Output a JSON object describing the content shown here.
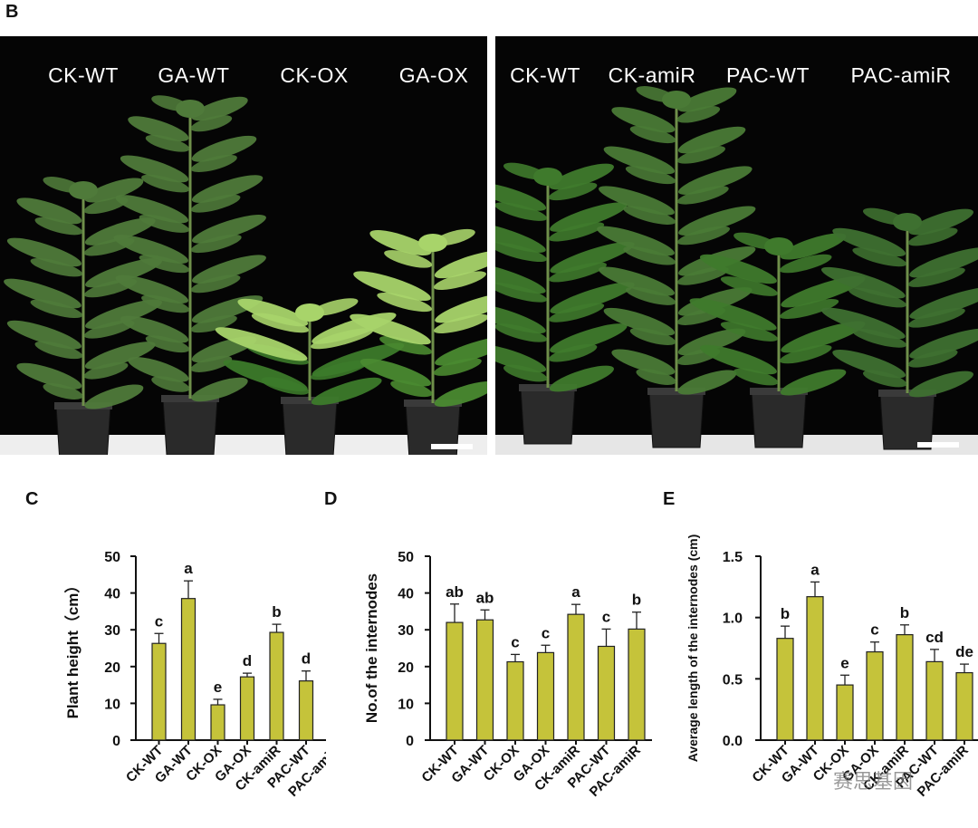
{
  "panels": {
    "b": {
      "letter": "B",
      "left_labels": [
        "CK-WT",
        "GA-WT",
        "CK-OX",
        "GA-OX"
      ],
      "right_labels": [
        "CK-WT",
        "CK-amiR",
        "PAC-WT",
        "PAC-amiR"
      ]
    },
    "c": {
      "letter": "C"
    },
    "d": {
      "letter": "D"
    },
    "e": {
      "letter": "E"
    }
  },
  "colors": {
    "bar_fill": "#c5c33a",
    "bar_stroke": "#222222",
    "photo_bg": "#050505",
    "leaf": "#3e6f2a",
    "leaf_light": "#a8d46a",
    "pot": "#2a2a2a"
  },
  "watermark": "赛思基因",
  "chart_data": [
    {
      "type": "bar",
      "categories": [
        "CK-WT",
        "GA-WT",
        "CK-OX",
        "GA-OX",
        "CK-amiR",
        "PAC-WT",
        "PAC-amiR"
      ],
      "values": [
        26.3,
        38.5,
        9.6,
        17.2,
        29.3,
        16.1,
        16.7
      ],
      "errors": [
        2.7,
        4.8,
        1.5,
        1.0,
        2.2,
        2.7,
        3.0
      ],
      "letters": [
        "c",
        "a",
        "e",
        "d",
        "b",
        "d",
        "d"
      ],
      "title": "",
      "xlabel": "",
      "ylabel": "Plant height（cm）",
      "ylim": [
        0,
        50
      ],
      "yticks": [
        "0",
        "10",
        "20",
        "30",
        "40",
        "50"
      ]
    },
    {
      "type": "bar",
      "categories": [
        "CK-WT",
        "GA-WT",
        "CK-OX",
        "GA-OX",
        "CK-amiR",
        "PAC-WT",
        "PAC-amiR"
      ],
      "values": [
        32.0,
        32.7,
        21.3,
        23.8,
        34.2,
        25.5,
        30.2
      ],
      "errors": [
        5.0,
        2.7,
        2.0,
        2.0,
        2.7,
        4.7,
        4.6
      ],
      "letters": [
        "ab",
        "ab",
        "c",
        "c",
        "a",
        "c",
        "b"
      ],
      "title": "",
      "xlabel": "",
      "ylabel": "No.of the internodes",
      "ylim": [
        0,
        50
      ],
      "yticks": [
        "0",
        "10",
        "20",
        "30",
        "40",
        "50"
      ]
    },
    {
      "type": "bar",
      "categories": [
        "CK-WT",
        "GA-WT",
        "CK-OX",
        "GA-OX",
        "CK-amiR",
        "PAC-WT",
        "PAC-amiR"
      ],
      "values": [
        0.83,
        1.17,
        0.45,
        0.72,
        0.86,
        0.64,
        0.55
      ],
      "errors": [
        0.1,
        0.12,
        0.08,
        0.08,
        0.08,
        0.1,
        0.07
      ],
      "letters": [
        "b",
        "a",
        "e",
        "c",
        "b",
        "cd",
        "de"
      ],
      "title": "",
      "xlabel": "",
      "ylabel": "Average length of the internodes (cm)",
      "ylim": [
        0,
        1.5
      ],
      "yticks": [
        "0.0",
        "0.5",
        "1.0",
        "1.5"
      ]
    }
  ]
}
